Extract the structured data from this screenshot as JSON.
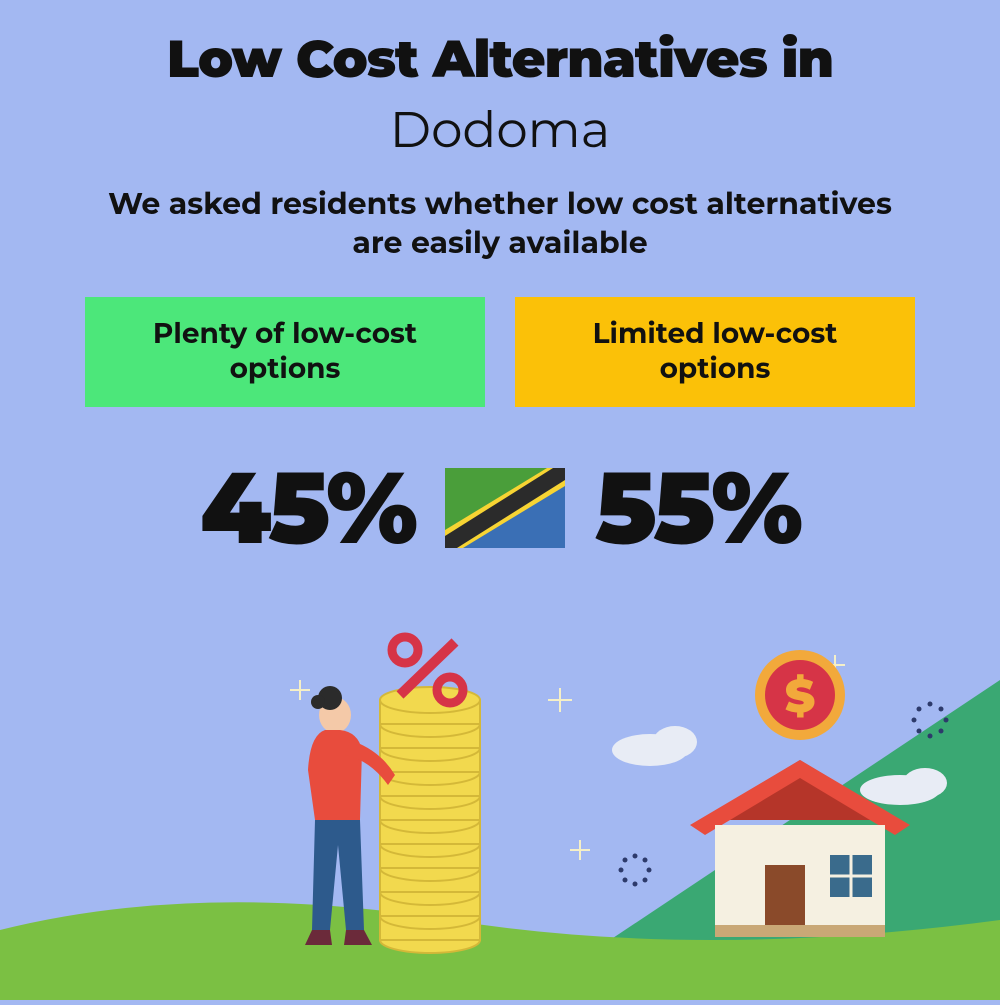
{
  "header": {
    "title_line1": "Low Cost Alternatives in",
    "title_line2": "Dodoma",
    "subtitle": "We asked residents whether low cost alternatives are easily available"
  },
  "options": {
    "left": {
      "label": "Plenty of low-cost options",
      "bg_color": "#4ce77a"
    },
    "right": {
      "label": "Limited low-cost options",
      "bg_color": "#fbc108"
    }
  },
  "stats": {
    "left_value": "45%",
    "right_value": "55%"
  },
  "flag": {
    "top_color": "#4a9e3a",
    "bottom_color": "#3a6fb5",
    "stripe_outer": "#f7d433",
    "stripe_inner": "#2b2b2b"
  },
  "illustration": {
    "hill_back": "#3aa873",
    "hill_front": "#7bc043",
    "ground": "#6ab52f",
    "person_top": "#e84c3d",
    "person_pants": "#2d5a8c",
    "coin_color": "#f2d94e",
    "coin_edge": "#d4b838",
    "percent_color": "#d63447",
    "house_wall": "#f5f0e1",
    "house_roof": "#e84c3d",
    "house_roof_top": "#b53529",
    "house_window": "#3a6b8c",
    "house_door": "#8a4a2a",
    "dollar_coin_outer": "#f2a93b",
    "dollar_coin_inner": "#d63447",
    "cloud_color": "#e8ecf5",
    "sparkle_color": "#f5f0c8"
  }
}
